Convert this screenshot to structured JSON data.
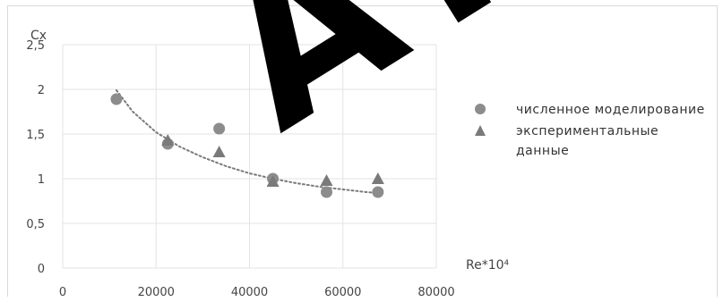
{
  "chart_data": {
    "type": "scatter",
    "ylabel": "Cx",
    "xlabel": "Re*10⁴",
    "xlim": [
      0,
      80000
    ],
    "ylim": [
      0,
      2.5
    ],
    "x_ticks": [
      "0",
      "20000",
      "40000",
      "60000",
      "80000"
    ],
    "y_ticks": [
      "0",
      "0,5",
      "1",
      "1,5",
      "2",
      "2,5"
    ],
    "grid": "horizontal and vertical",
    "legend_position": "right",
    "series": [
      {
        "name": "численное моделирование",
        "marker": "circle",
        "color": "#8c8c8c",
        "points": [
          {
            "x": 11500,
            "y": 1.89
          },
          {
            "x": 22500,
            "y": 1.39
          },
          {
            "x": 33500,
            "y": 1.56
          },
          {
            "x": 45000,
            "y": 1.0
          },
          {
            "x": 56500,
            "y": 0.85
          },
          {
            "x": 67500,
            "y": 0.85
          }
        ]
      },
      {
        "name": "экспериментальные данные",
        "marker": "triangle",
        "color": "#7a7a7a",
        "points": [
          {
            "x": 22500,
            "y": 1.43
          },
          {
            "x": 33500,
            "y": 1.3
          },
          {
            "x": 45000,
            "y": 0.97
          },
          {
            "x": 56500,
            "y": 0.98
          },
          {
            "x": 67500,
            "y": 1.0
          }
        ]
      }
    ],
    "trendline": {
      "style": "dotted",
      "color": "#7a7a7a",
      "points": [
        {
          "x": 11500,
          "y": 1.99
        },
        {
          "x": 15000,
          "y": 1.75
        },
        {
          "x": 20000,
          "y": 1.52
        },
        {
          "x": 25000,
          "y": 1.36
        },
        {
          "x": 30000,
          "y": 1.24
        },
        {
          "x": 35000,
          "y": 1.14
        },
        {
          "x": 40000,
          "y": 1.06
        },
        {
          "x": 45000,
          "y": 1.0
        },
        {
          "x": 50000,
          "y": 0.95
        },
        {
          "x": 55000,
          "y": 0.91
        },
        {
          "x": 60000,
          "y": 0.88
        },
        {
          "x": 65000,
          "y": 0.85
        },
        {
          "x": 67500,
          "y": 0.84
        }
      ]
    }
  },
  "legend": {
    "series1_label": "численное моделирование",
    "series2_label": "экспериментальные данные"
  },
  "watermark": {
    "text": "АТОРИЙ",
    "color": "#000000"
  }
}
